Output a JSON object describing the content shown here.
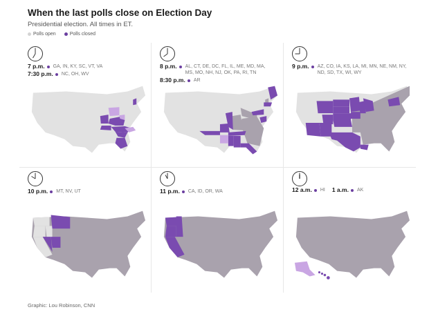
{
  "title": "When the last polls close on Election Day",
  "subtitle": "Presidential election. All times in ET.",
  "legend": {
    "open_label": "Polls open",
    "closed_label": "Polls closed",
    "open_color": "#d4d4d4",
    "closed_color": "#6b3fa0"
  },
  "colors": {
    "open": "#e2e2e2",
    "newly_closed": "#7a4bb0",
    "partial": "#c9a6e3",
    "previously_closed": "#a9a2ad",
    "border": "#ffffff"
  },
  "panels": [
    {
      "clock_icon": "clock-7-icon",
      "entries": [
        {
          "time": "7 p.m.",
          "states": "GA, IN, KY, SC, VT, VA"
        },
        {
          "time": "7:30 p.m.",
          "states": "NC, OH, WV"
        }
      ]
    },
    {
      "clock_icon": "clock-8-icon",
      "entries": [
        {
          "time": "8 p.m.",
          "states": "AL, CT, DE, DC, FL, IL, ME, MD, MA, MS, MO, NH, NJ, OK, PA, RI, TN"
        },
        {
          "time": "8:30 p.m.",
          "states": "AR"
        }
      ]
    },
    {
      "clock_icon": "clock-9-icon",
      "entries": [
        {
          "time": "9 p.m.",
          "states": "AZ, CO, IA, KS, LA, MI, MN, NE, NM, NY, ND, SD, TX, WI, WY"
        }
      ]
    },
    {
      "clock_icon": "clock-10-icon",
      "entries": [
        {
          "time": "10 p.m.",
          "states": "MT, NV, UT"
        }
      ]
    },
    {
      "clock_icon": "clock-11-icon",
      "entries": [
        {
          "time": "11 p.m.",
          "states": "CA, ID, OR, WA"
        }
      ]
    },
    {
      "clock_icon": "clock-12-icon",
      "entries": [
        {
          "time": "12 a.m.",
          "states": "HI"
        },
        {
          "time": "1 a.m.",
          "states": "AK"
        }
      ]
    }
  ],
  "credit": "Graphic: Lou Robinson, CNN"
}
